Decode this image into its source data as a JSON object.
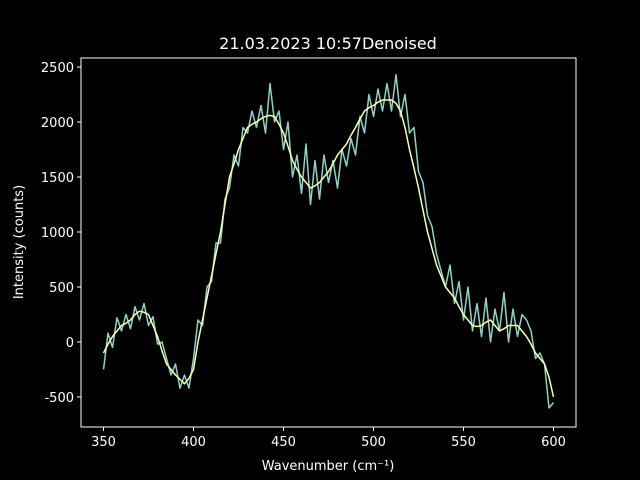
{
  "chart_data": {
    "type": "line",
    "title": "21.03.2023 10:57Denoised",
    "xlabel": "Wavenumber (cm⁻¹)",
    "ylabel": "Intensity (counts)",
    "x": [
      350,
      352.5,
      355,
      357.5,
      360,
      362.5,
      365,
      367.5,
      370,
      372.5,
      375,
      377.5,
      380,
      382.5,
      385,
      387.5,
      390,
      392.5,
      395,
      397.5,
      400,
      402.5,
      405,
      407.5,
      410,
      412.5,
      415,
      417.5,
      420,
      422.5,
      425,
      427.5,
      430,
      432.5,
      435,
      437.5,
      440,
      442.5,
      445,
      447.5,
      450,
      452.5,
      455,
      457.5,
      460,
      462.5,
      465,
      467.5,
      470,
      472.5,
      475,
      477.5,
      480,
      482.5,
      485,
      487.5,
      490,
      492.5,
      495,
      497.5,
      500,
      502.5,
      505,
      507.5,
      510,
      512.5,
      515,
      517.5,
      520,
      522.5,
      525,
      527.5,
      530,
      532.5,
      535,
      537.5,
      540,
      542.5,
      545,
      547.5,
      550,
      552.5,
      555,
      557.5,
      560,
      562.5,
      565,
      567.5,
      570,
      572.5,
      575,
      577.5,
      580,
      582.5,
      585,
      587.5,
      590,
      592.5,
      595,
      597.5,
      600
    ],
    "series": [
      {
        "color": "#8dd3c7",
        "values": [
          -250,
          80,
          -50,
          220,
          100,
          250,
          120,
          320,
          200,
          350,
          150,
          230,
          -20,
          0,
          -150,
          -300,
          -200,
          -420,
          -300,
          -420,
          -150,
          200,
          150,
          500,
          550,
          900,
          900,
          1300,
          1400,
          1700,
          1600,
          1950,
          1900,
          2100,
          1950,
          2150,
          1900,
          2350,
          2000,
          2100,
          1750,
          2000,
          1500,
          1700,
          1350,
          1800,
          1250,
          1650,
          1300,
          1700,
          1450,
          1650,
          1400,
          1750,
          1600,
          1850,
          1700,
          2050,
          1900,
          2250,
          2050,
          2300,
          2100,
          2350,
          2100,
          2430,
          2050,
          2250,
          1900,
          1950,
          1550,
          1450,
          1150,
          1050,
          800,
          650,
          500,
          700,
          350,
          550,
          200,
          500,
          100,
          350,
          50,
          400,
          0,
          300,
          100,
          450,
          0,
          300,
          50,
          250,
          200,
          100,
          -150,
          -100,
          -200,
          -600,
          -550
        ]
      },
      {
        "color": "#feffb3",
        "values": [
          -100,
          -20,
          50,
          100,
          150,
          170,
          200,
          250,
          280,
          270,
          250,
          150,
          50,
          -80,
          -200,
          -250,
          -300,
          -340,
          -380,
          -330,
          -250,
          0,
          200,
          400,
          600,
          800,
          1000,
          1250,
          1500,
          1620,
          1750,
          1850,
          1950,
          1980,
          2000,
          2030,
          2050,
          2060,
          2050,
          1980,
          1900,
          1780,
          1650,
          1570,
          1500,
          1450,
          1400,
          1420,
          1450,
          1500,
          1550,
          1620,
          1700,
          1750,
          1800,
          1880,
          1950,
          2030,
          2100,
          2130,
          2150,
          2180,
          2200,
          2200,
          2200,
          2170,
          2100,
          1950,
          1750,
          1580,
          1400,
          1200,
          1000,
          850,
          700,
          600,
          500,
          450,
          400,
          320,
          250,
          200,
          150,
          140,
          150,
          180,
          200,
          150,
          100,
          120,
          150,
          150,
          150,
          100,
          50,
          -20,
          -100,
          -150,
          -200,
          -320,
          -500
        ]
      }
    ],
    "xlim": [
      337.5,
      612.5
    ],
    "ylim": [
      -773,
      2582
    ],
    "xticks": [
      350,
      400,
      450,
      500,
      550,
      600
    ],
    "yticks": [
      -500,
      0,
      500,
      1000,
      1500,
      2000,
      2500
    ]
  }
}
